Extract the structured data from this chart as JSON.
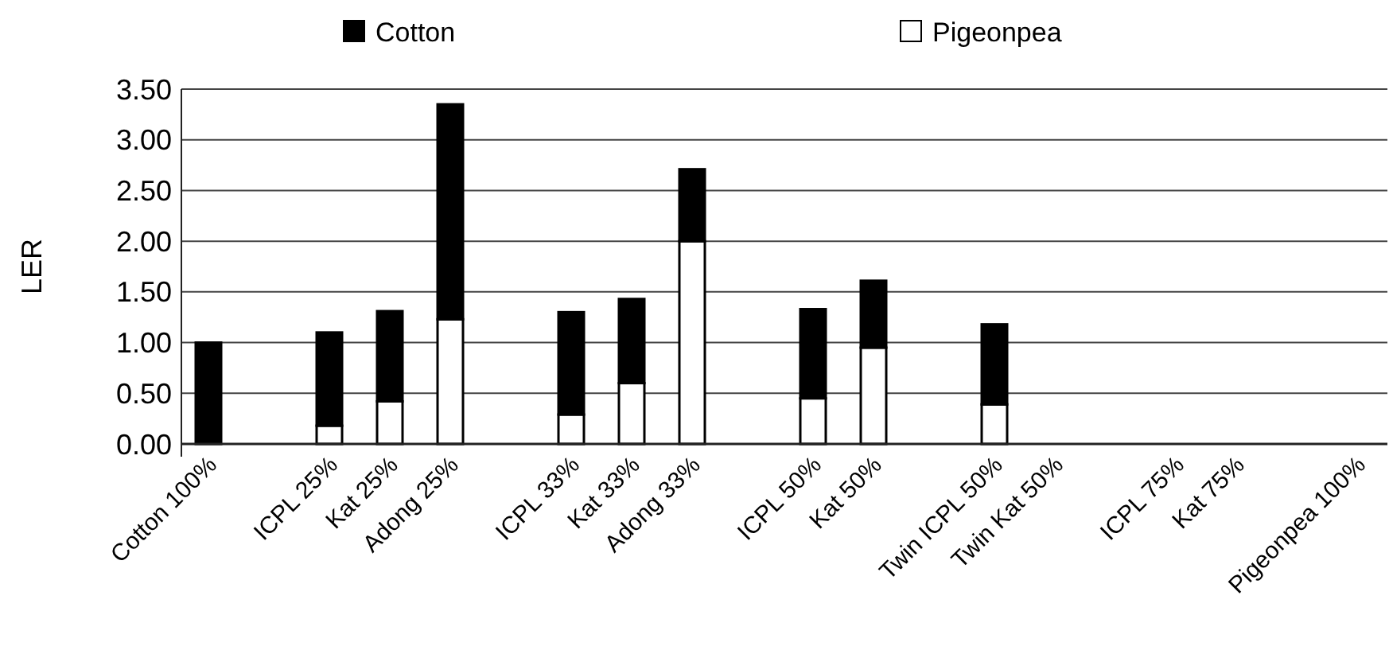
{
  "chart_data": {
    "type": "bar",
    "stacked": true,
    "ylabel": "LER",
    "categories": [
      "Cotton 100%",
      null,
      "ICPL 25%",
      "Kat 25%",
      "Adong 25%",
      null,
      "ICPL 33%",
      "Kat 33%",
      "Adong 33%",
      null,
      "ICPL 50%",
      "Kat 50%",
      null,
      "Twin ICPL 50%",
      "Twin Kat 50%",
      null,
      "ICPL 75%",
      "Kat 75%",
      null,
      "Pigeonpea 100%"
    ],
    "series": [
      {
        "name": "Pigeonpea",
        "color": "#ffffff",
        "values": [
          0,
          null,
          0.18,
          0.42,
          1.23,
          null,
          0.29,
          0.6,
          2.0,
          null,
          0.45,
          0.95,
          null,
          0.39,
          null,
          null,
          null,
          null,
          null,
          null
        ]
      },
      {
        "name": "Cotton",
        "color": "#000000",
        "values": [
          1.0,
          null,
          0.92,
          0.89,
          2.12,
          null,
          1.01,
          0.83,
          0.71,
          null,
          0.88,
          0.66,
          null,
          0.79,
          null,
          null,
          null,
          null,
          null,
          null
        ]
      }
    ],
    "ylim": [
      0,
      3.5
    ],
    "yticks": [
      {
        "value": 0,
        "label": "0.00"
      },
      {
        "value": 0.5,
        "label": "0.50"
      },
      {
        "value": 1,
        "label": "1.00"
      },
      {
        "value": 1.5,
        "label": "1.50"
      },
      {
        "value": 2,
        "label": "2.00"
      },
      {
        "value": 2.5,
        "label": "2.50"
      },
      {
        "value": 3,
        "label": "3.00"
      },
      {
        "value": 3.5,
        "label": "3.50"
      }
    ],
    "grid": "y",
    "legend": "top"
  }
}
